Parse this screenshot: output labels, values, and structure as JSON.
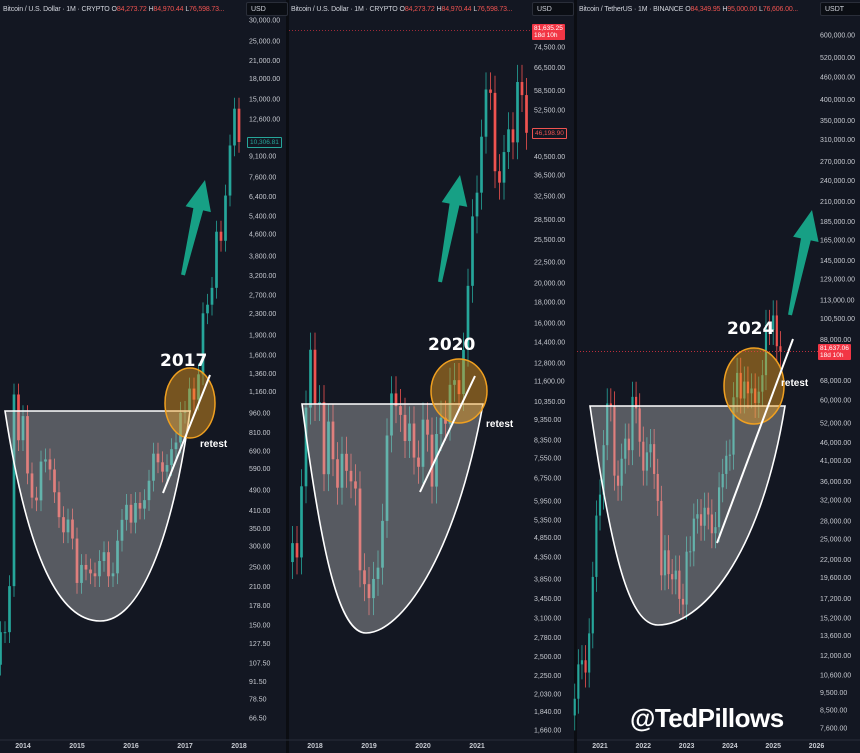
{
  "colors": {
    "up": "#26a69a",
    "down": "#ef5350",
    "background": "#131722",
    "arrow": "#17a085",
    "highlight": "#f0a020",
    "bowl_fill": "rgba(200,200,200,0.38)"
  },
  "watermark": "@TedPillows",
  "chart_data": [
    {
      "type": "candlestick",
      "scale": "log",
      "interval": "1M",
      "header": {
        "symbol": "Bitcoin / U.S. Dollar · 1M · CRYPTO",
        "o_label": "O",
        "o": "84,273.72",
        "h_label": "H",
        "h": "84,970.44",
        "l_label": "L",
        "l": "76,598.73..."
      },
      "currency": "USD",
      "start": "2013-07",
      "closes": [
        106,
        141,
        141,
        211,
        1130,
        757,
        935,
        566,
        458,
        447,
        628,
        640,
        586,
        480,
        386,
        338,
        378,
        320,
        217,
        254,
        244,
        236,
        230,
        263,
        284,
        230,
        236,
        314,
        377,
        430,
        368,
        437,
        416,
        448,
        531,
        673,
        624,
        575,
        609,
        700,
        742,
        963,
        970,
        1190,
        1080,
        1348,
        2300,
        2480,
        2875,
        4700,
        4340,
        6450,
        10000,
        13800,
        10306.81
      ],
      "y_ticks": [
        "30,000.00",
        "25,000.00",
        "21,000.00",
        "18,000.00",
        "15,000.00",
        "12,600.00",
        "9,100.00",
        "7,600.00",
        "6,400.00",
        "5,400.00",
        "4,600.00",
        "3,800.00",
        "3,200.00",
        "2,700.00",
        "2,300.00",
        "1,900.00",
        "1,600.00",
        "1,360.00",
        "1,160.00",
        "960.00",
        "810.00",
        "690.00",
        "590.00",
        "490.00",
        "410.00",
        "350.00",
        "300.00",
        "250.00",
        "210.00",
        "178.00",
        "150.00",
        "127.50",
        "107.50",
        "91.50",
        "78.50",
        "66.50"
      ],
      "x_ticks": [
        "2014",
        "2015",
        "2016",
        "2017",
        "2018"
      ],
      "price_labels": [
        {
          "text": "10,306.81",
          "sub": "",
          "style": "outline-up"
        }
      ],
      "annotations": {
        "year": "2017",
        "retest": "retest"
      }
    },
    {
      "type": "candlestick",
      "scale": "log",
      "interval": "1M",
      "header": {
        "symbol": "Bitcoin / U.S. Dollar · 1M · CRYPTO",
        "o_label": "O",
        "o": "84,273.72",
        "h_label": "H",
        "h": "84,970.44",
        "l_label": "L",
        "l": "76,598.73..."
      },
      "currency": "USD",
      "start": "2017-08",
      "closes": [
        4700,
        4340,
        6450,
        10000,
        13800,
        10200,
        10300,
        6900,
        9250,
        7500,
        6400,
        7730,
        7030,
        6630,
        6370,
        4040,
        3740,
        3460,
        3850,
        4100,
        5320,
        8560,
        10820,
        10080,
        9600,
        8300,
        9150,
        7570,
        7190,
        9350,
        8600,
        6440,
        8630,
        9450,
        9140,
        11350,
        11650,
        10780,
        13800,
        19700,
        29000,
        33100,
        45200,
        58800,
        57700,
        37300,
        35000,
        41500,
        47100,
        43800,
        61300,
        57000,
        46198.9
      ],
      "y_ticks": [
        "74,500.00",
        "66,500.00",
        "58,500.00",
        "52,500.00",
        "40,500.00",
        "36,500.00",
        "32,500.00",
        "28,500.00",
        "25,500.00",
        "22,500.00",
        "20,000.00",
        "18,000.00",
        "16,000.00",
        "14,400.00",
        "12,800.00",
        "11,600.00",
        "10,350.00",
        "9,350.00",
        "8,350.00",
        "7,550.00",
        "6,750.00",
        "5,950.00",
        "5,350.00",
        "4,850.00",
        "4,350.00",
        "3,850.00",
        "3,450.00",
        "3,100.00",
        "2,780.00",
        "2,500.00",
        "2,250.00",
        "2,030.00",
        "1,840.00",
        "1,660.00"
      ],
      "x_ticks": [
        "2018",
        "2019",
        "2020",
        "2021"
      ],
      "price_labels": [
        {
          "text": "81,635.25",
          "sub": "18d 10h",
          "style": "fill-down"
        },
        {
          "text": "46,198.90",
          "sub": "",
          "style": "outline-down"
        }
      ],
      "annotations": {
        "year": "2020",
        "retest": "retest"
      }
    },
    {
      "type": "candlestick",
      "scale": "log",
      "interval": "1M",
      "header": {
        "symbol": "Bitcoin / TetherUS · 1M · BINANCE",
        "o_label": "O",
        "o": "84,349.95",
        "h_label": "H",
        "h": "95,000.00",
        "l_label": "L",
        "l": "76,606.00..."
      },
      "currency": "USDT",
      "start": "2020-06",
      "closes": [
        9140,
        11350,
        11650,
        10780,
        13800,
        19700,
        29000,
        33100,
        45200,
        58800,
        57700,
        37300,
        35000,
        41500,
        47100,
        43800,
        61300,
        57000,
        46200,
        38500,
        43200,
        45500,
        37700,
        31800,
        19900,
        23300,
        20050,
        19400,
        20500,
        17150,
        16550,
        23100,
        23150,
        28450,
        29250,
        27200,
        30470,
        29200,
        25940,
        26960,
        34650,
        37700,
        42280,
        42580,
        61130,
        71290,
        60670,
        67490,
        62680,
        64620,
        58970,
        63330,
        70290,
        96400,
        93430,
        102400,
        84350,
        81637.06
      ],
      "y_ticks": [
        "600,000.00",
        "520,000.00",
        "460,000.00",
        "400,000.00",
        "350,000.00",
        "310,000.00",
        "270,000.00",
        "240,000.00",
        "210,000.00",
        "185,000.00",
        "165,000.00",
        "145,000.00",
        "129,000.00",
        "113,000.00",
        "100,500.00",
        "88,000.00",
        "68,000.00",
        "60,000.00",
        "52,000.00",
        "46,000.00",
        "41,000.00",
        "36,000.00",
        "32,000.00",
        "28,000.00",
        "25,000.00",
        "22,000.00",
        "19,600.00",
        "17,200.00",
        "15,200.00",
        "13,600.00",
        "12,000.00",
        "10,600.00",
        "9,500.00",
        "8,500.00",
        "7,600.00"
      ],
      "x_ticks": [
        "2021",
        "2022",
        "2023",
        "2024",
        "2025",
        "2026"
      ],
      "price_labels": [
        {
          "text": "81,637.06",
          "sub": "18d 10h",
          "style": "fill-down"
        }
      ],
      "annotations": {
        "year": "2024",
        "retest": "retest"
      }
    }
  ]
}
